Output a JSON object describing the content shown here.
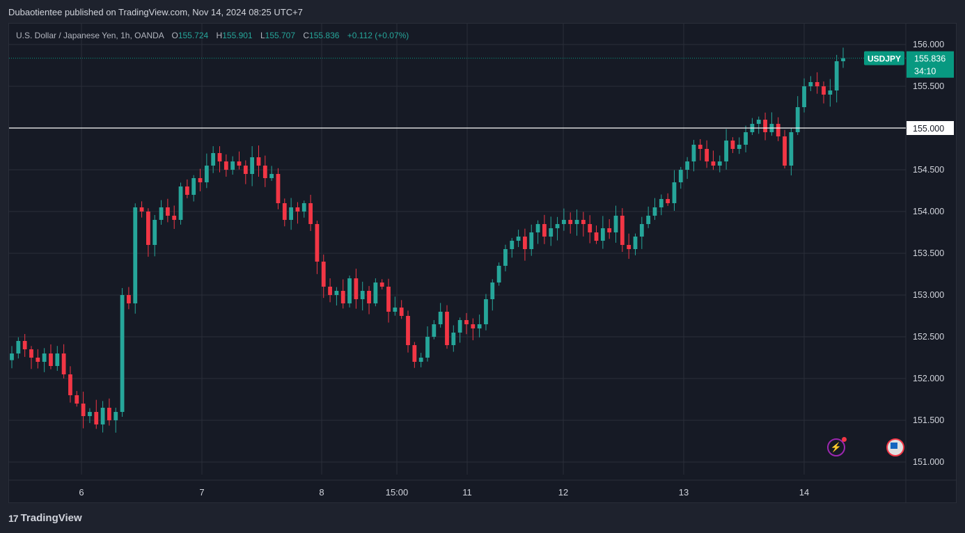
{
  "header": {
    "published": "Dubaotientee published on TradingView.com, Nov 14, 2024 08:25 UTC+7"
  },
  "legend": {
    "title": "U.S. Dollar / Japanese Yen, 1h, OANDA",
    "o_label": "O",
    "o_value": "155.724",
    "h_label": "H",
    "h_value": "155.901",
    "l_label": "L",
    "l_value": "155.707",
    "c_label": "C",
    "c_value": "155.836",
    "change": "+0.112 (+0.07%)"
  },
  "footer": {
    "logo_text": "TradingView"
  },
  "colors": {
    "up": "#26a69a",
    "down": "#f23645",
    "grid": "#2a2e39",
    "axis_text": "#d1d4dc",
    "price_tag": "#089981",
    "background": "#161a25"
  },
  "icons": [
    "lightning-icon",
    "us-flag-icon"
  ],
  "chart_data": {
    "type": "candlestick",
    "symbol": "USDJPY",
    "ylim": [
      150.85,
      156.25
    ],
    "y_ticks": [
      "156.000",
      "155.500",
      "155.000",
      "154.500",
      "154.000",
      "153.500",
      "153.000",
      "152.500",
      "152.000",
      "151.500",
      "151.000"
    ],
    "x_ticks": [
      "6",
      "7",
      "8",
      "15:00",
      "11",
      "12",
      "13",
      "14"
    ],
    "current_price": {
      "symbol": "USDJPY",
      "value": 155.836,
      "label": "155.836",
      "countdown": "34:10"
    },
    "horizontal_line": {
      "value": 155.0,
      "label": "155.000"
    },
    "grid": true,
    "close_path": [
      152.3,
      152.45,
      152.35,
      152.25,
      152.2,
      152.3,
      152.15,
      152.3,
      152.05,
      151.8,
      151.7,
      151.55,
      151.6,
      151.45,
      151.65,
      151.5,
      151.6,
      153.0,
      152.9,
      154.05,
      154.0,
      153.6,
      153.9,
      154.05,
      153.95,
      153.9,
      154.3,
      154.2,
      154.4,
      154.35,
      154.55,
      154.7,
      154.6,
      154.5,
      154.6,
      154.55,
      154.45,
      154.65,
      154.55,
      154.4,
      154.45,
      154.1,
      153.9,
      154.05,
      154.0,
      154.1,
      153.85,
      153.4,
      153.1,
      153.0,
      153.05,
      152.9,
      153.2,
      152.95,
      153.05,
      152.9,
      153.15,
      153.1,
      152.8,
      152.85,
      152.75,
      152.4,
      152.2,
      152.25,
      152.5,
      152.65,
      152.8,
      152.4,
      152.55,
      152.7,
      152.65,
      152.6,
      152.65,
      152.95,
      153.15,
      153.35,
      153.55,
      153.65,
      153.7,
      153.55,
      153.75,
      153.85,
      153.7,
      153.8,
      153.85,
      153.9,
      153.85,
      153.9,
      153.85,
      153.75,
      153.65,
      153.8,
      153.75,
      153.95,
      153.6,
      153.55,
      153.7,
      153.85,
      153.95,
      154.05,
      154.15,
      154.1,
      154.35,
      154.5,
      154.6,
      154.8,
      154.75,
      154.6,
      154.55,
      154.6,
      154.85,
      154.75,
      154.8,
      154.95,
      155.05,
      155.1,
      154.95,
      155.05,
      154.9,
      154.55,
      154.95,
      155.25,
      155.5,
      155.55,
      155.5,
      155.4,
      155.45,
      155.8,
      155.836
    ]
  }
}
